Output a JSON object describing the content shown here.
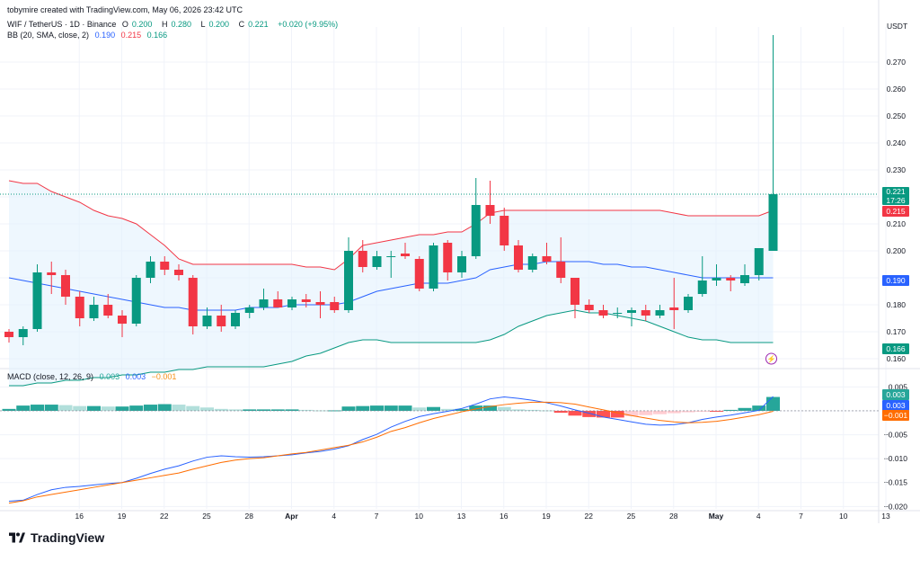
{
  "watermark_credit": "tobymire created with TradingView.com, May 06, 2026 23:42 UTC",
  "symbol_line": {
    "symbol": "WIF / TetherUS · 1D · Binance",
    "open_label": "O",
    "open": "0.200",
    "high_label": "H",
    "high": "0.280",
    "low_label": "L",
    "low": "0.200",
    "close_label": "C",
    "close": "0.221",
    "change": "+0.020 (+9.95%)"
  },
  "bb_line": {
    "label": "BB (20, SMA, close, 2)",
    "basis": "0.190",
    "upper": "0.215",
    "lower": "0.166"
  },
  "macd_line": {
    "label": "MACD (close, 12, 26, 9)",
    "hist": "0.003",
    "macd": "0.003",
    "signal": "−0.001"
  },
  "price_axis": {
    "currency": "USDT",
    "ticks": [
      "0.270",
      "0.260",
      "0.250",
      "0.240",
      "0.230",
      "0.220",
      "0.210",
      "0.200",
      "0.190",
      "0.180",
      "0.170",
      "0.160"
    ],
    "tags": {
      "last": "0.221",
      "countdown": "17:26",
      "upper": "0.215",
      "basis": "0.190",
      "lower": "0.166"
    }
  },
  "macd_axis": {
    "ticks": [
      "0.005",
      "0.000",
      "−0.005",
      "−0.010",
      "−0.015",
      "−0.020"
    ],
    "tags": {
      "hist": "0.003",
      "macd": "0.003",
      "signal": "−0.001"
    }
  },
  "time_axis": {
    "labels": [
      "16",
      "19",
      "22",
      "25",
      "28",
      "Apr",
      "4",
      "7",
      "10",
      "13",
      "16",
      "19",
      "22",
      "25",
      "28",
      "May",
      "4",
      "7",
      "10",
      "13"
    ],
    "bold": [
      "Apr",
      "May"
    ]
  },
  "colors": {
    "up": "#089981",
    "down": "#f23645",
    "bb_upper": "#f23645",
    "bb_basis": "#2962ff",
    "bb_lower": "#089981",
    "bb_fill": "#e3f2fd",
    "macd": "#2962ff",
    "signal": "#ff6d00",
    "hist_up_strong": "#26a69a",
    "hist_up_weak": "#b2dfdb",
    "hist_down_strong": "#ff5252",
    "hist_down_weak": "#ffcdd2",
    "grid": "#f0f3fa"
  },
  "brand": "TradingView",
  "chart_data": [
    {
      "type": "candlestick",
      "title": "WIF / TetherUS · 1D · Binance",
      "ylabel": "USDT",
      "ylim": [
        0.157,
        0.283
      ],
      "x": [
        "Mar 13",
        "Mar 14",
        "Mar 15",
        "Mar 16",
        "Mar 17",
        "Mar 18",
        "Mar 19",
        "Mar 20",
        "Mar 21",
        "Mar 22",
        "Mar 23",
        "Mar 24",
        "Mar 25",
        "Mar 26",
        "Mar 27",
        "Mar 28",
        "Mar 29",
        "Mar 30",
        "Mar 31",
        "Apr 1",
        "Apr 2",
        "Apr 3",
        "Apr 4",
        "Apr 5",
        "Apr 6",
        "Apr 7",
        "Apr 8",
        "Apr 9",
        "Apr 10",
        "Apr 11",
        "Apr 12",
        "Apr 13",
        "Apr 14",
        "Apr 15",
        "Apr 16",
        "Apr 17",
        "Apr 18",
        "Apr 19",
        "Apr 20",
        "Apr 21",
        "Apr 22",
        "Apr 23",
        "Apr 24",
        "Apr 25",
        "Apr 26",
        "Apr 27",
        "Apr 28",
        "Apr 29",
        "Apr 30",
        "May 1",
        "May 2",
        "May 3",
        "May 4",
        "May 5",
        "May 6"
      ],
      "ohlc": [
        [
          0.17,
          0.171,
          0.166,
          0.168
        ],
        [
          0.168,
          0.172,
          0.165,
          0.171
        ],
        [
          0.171,
          0.195,
          0.17,
          0.192
        ],
        [
          0.192,
          0.196,
          0.184,
          0.191
        ],
        [
          0.191,
          0.193,
          0.18,
          0.183
        ],
        [
          0.183,
          0.185,
          0.172,
          0.175
        ],
        [
          0.175,
          0.183,
          0.174,
          0.18
        ],
        [
          0.18,
          0.184,
          0.175,
          0.176
        ],
        [
          0.176,
          0.178,
          0.168,
          0.173
        ],
        [
          0.173,
          0.191,
          0.172,
          0.19
        ],
        [
          0.19,
          0.198,
          0.188,
          0.196
        ],
        [
          0.196,
          0.198,
          0.191,
          0.193
        ],
        [
          0.193,
          0.195,
          0.189,
          0.191
        ],
        [
          0.19,
          0.191,
          0.169,
          0.172
        ],
        [
          0.172,
          0.179,
          0.171,
          0.176
        ],
        [
          0.176,
          0.18,
          0.17,
          0.172
        ],
        [
          0.172,
          0.178,
          0.171,
          0.177
        ],
        [
          0.177,
          0.18,
          0.175,
          0.179
        ],
        [
          0.179,
          0.186,
          0.178,
          0.182
        ],
        [
          0.182,
          0.185,
          0.179,
          0.179
        ],
        [
          0.179,
          0.183,
          0.178,
          0.182
        ],
        [
          0.182,
          0.184,
          0.179,
          0.181
        ],
        [
          0.181,
          0.185,
          0.175,
          0.18
        ],
        [
          0.181,
          0.183,
          0.177,
          0.178
        ],
        [
          0.178,
          0.205,
          0.177,
          0.2
        ],
        [
          0.2,
          0.204,
          0.192,
          0.194
        ],
        [
          0.194,
          0.2,
          0.193,
          0.198
        ],
        [
          0.198,
          0.2,
          0.19,
          0.198
        ],
        [
          0.199,
          0.203,
          0.197,
          0.198
        ],
        [
          0.197,
          0.198,
          0.185,
          0.186
        ],
        [
          0.186,
          0.203,
          0.185,
          0.202
        ],
        [
          0.203,
          0.204,
          0.189,
          0.192
        ],
        [
          0.192,
          0.2,
          0.19,
          0.198
        ],
        [
          0.198,
          0.227,
          0.197,
          0.217
        ],
        [
          0.217,
          0.226,
          0.21,
          0.213
        ],
        [
          0.213,
          0.216,
          0.2,
          0.202
        ],
        [
          0.202,
          0.204,
          0.192,
          0.193
        ],
        [
          0.193,
          0.199,
          0.192,
          0.198
        ],
        [
          0.198,
          0.203,
          0.195,
          0.196
        ],
        [
          0.196,
          0.205,
          0.188,
          0.19
        ],
        [
          0.19,
          0.19,
          0.175,
          0.18
        ],
        [
          0.18,
          0.182,
          0.177,
          0.178
        ],
        [
          0.178,
          0.18,
          0.175,
          0.176
        ],
        [
          0.177,
          0.179,
          0.175,
          0.177
        ],
        [
          0.177,
          0.179,
          0.172,
          0.178
        ],
        [
          0.178,
          0.18,
          0.174,
          0.176
        ],
        [
          0.176,
          0.18,
          0.175,
          0.178
        ],
        [
          0.179,
          0.19,
          0.171,
          0.178
        ],
        [
          0.178,
          0.184,
          0.177,
          0.183
        ],
        [
          0.184,
          0.198,
          0.183,
          0.189
        ],
        [
          0.189,
          0.195,
          0.187,
          0.19
        ],
        [
          0.19,
          0.191,
          0.185,
          0.189
        ],
        [
          0.188,
          0.195,
          0.187,
          0.191
        ],
        [
          0.191,
          0.201,
          0.189,
          0.201
        ],
        [
          0.2,
          0.28,
          0.2,
          0.221
        ]
      ],
      "bb_upper": [
        0.226,
        0.225,
        0.225,
        0.222,
        0.22,
        0.218,
        0.215,
        0.213,
        0.212,
        0.21,
        0.206,
        0.202,
        0.197,
        0.195,
        0.195,
        0.195,
        0.195,
        0.195,
        0.195,
        0.195,
        0.195,
        0.194,
        0.194,
        0.193,
        0.197,
        0.202,
        0.203,
        0.204,
        0.205,
        0.206,
        0.206,
        0.207,
        0.207,
        0.21,
        0.214,
        0.215,
        0.215,
        0.215,
        0.215,
        0.215,
        0.215,
        0.215,
        0.215,
        0.215,
        0.215,
        0.215,
        0.215,
        0.214,
        0.213,
        0.213,
        0.213,
        0.213,
        0.213,
        0.213,
        0.215
      ],
      "bb_basis": [
        0.19,
        0.189,
        0.188,
        0.187,
        0.186,
        0.185,
        0.184,
        0.183,
        0.182,
        0.181,
        0.18,
        0.179,
        0.179,
        0.178,
        0.178,
        0.178,
        0.178,
        0.179,
        0.179,
        0.179,
        0.18,
        0.18,
        0.18,
        0.18,
        0.181,
        0.183,
        0.185,
        0.186,
        0.187,
        0.188,
        0.188,
        0.188,
        0.189,
        0.19,
        0.193,
        0.194,
        0.195,
        0.195,
        0.196,
        0.196,
        0.196,
        0.196,
        0.195,
        0.195,
        0.194,
        0.194,
        0.193,
        0.192,
        0.191,
        0.19,
        0.19,
        0.19,
        0.19,
        0.19,
        0.19
      ],
      "bb_lower": [
        0.15,
        0.15,
        0.151,
        0.151,
        0.152,
        0.152,
        0.153,
        0.153,
        0.154,
        0.154,
        0.155,
        0.155,
        0.156,
        0.156,
        0.157,
        0.157,
        0.157,
        0.157,
        0.157,
        0.158,
        0.159,
        0.161,
        0.162,
        0.164,
        0.166,
        0.167,
        0.167,
        0.166,
        0.166,
        0.166,
        0.166,
        0.166,
        0.166,
        0.166,
        0.167,
        0.169,
        0.172,
        0.174,
        0.176,
        0.177,
        0.178,
        0.177,
        0.177,
        0.176,
        0.175,
        0.174,
        0.172,
        0.17,
        0.168,
        0.167,
        0.167,
        0.166,
        0.166,
        0.166,
        0.166
      ]
    },
    {
      "type": "bar",
      "title": "MACD (close, 12, 26, 9)",
      "ylim": [
        -0.0205,
        0.0062
      ],
      "histogram": [
        0.0004,
        0.0011,
        0.0013,
        0.0013,
        0.0012,
        0.001,
        0.001,
        0.0009,
        0.0009,
        0.0011,
        0.0013,
        0.0014,
        0.0013,
        0.001,
        0.0007,
        0.0004,
        0.0003,
        0.0003,
        0.0003,
        0.0003,
        0.0003,
        0.0002,
        0.0001,
        0.0001,
        0.0009,
        0.001,
        0.0011,
        0.0011,
        0.0011,
        0.0007,
        0.0008,
        0.0004,
        0.0004,
        0.0011,
        0.0011,
        0.0008,
        0.0003,
        0.0002,
        0.0001,
        -0.0004,
        -0.001,
        -0.0013,
        -0.0014,
        -0.0014,
        -0.0011,
        -0.0009,
        -0.0007,
        -0.0005,
        -0.0003,
        -0.0001,
        -0.0001,
        0.0002,
        0.0006,
        0.0011,
        0.0029
      ],
      "macd": [
        -0.0189,
        -0.0187,
        -0.0175,
        -0.0165,
        -0.016,
        -0.0158,
        -0.0155,
        -0.0152,
        -0.015,
        -0.0141,
        -0.0131,
        -0.0122,
        -0.0115,
        -0.0105,
        -0.0097,
        -0.0094,
        -0.0096,
        -0.0097,
        -0.0096,
        -0.0094,
        -0.0092,
        -0.0088,
        -0.0085,
        -0.008,
        -0.0073,
        -0.006,
        -0.0049,
        -0.0034,
        -0.0022,
        -0.0012,
        -0.0006,
        -0.0001,
        0.0005,
        0.0014,
        0.0025,
        0.0029,
        0.0026,
        0.0022,
        0.0017,
        0.001,
        0.0002,
        -0.0005,
        -0.0013,
        -0.0018,
        -0.0023,
        -0.0028,
        -0.003,
        -0.0029,
        -0.0025,
        -0.0018,
        -0.0013,
        -0.0009,
        -0.0004,
        0.0001,
        0.003
      ],
      "signal": [
        -0.0193,
        -0.0188,
        -0.018,
        -0.0175,
        -0.017,
        -0.0165,
        -0.016,
        -0.0155,
        -0.015,
        -0.0145,
        -0.014,
        -0.0135,
        -0.013,
        -0.0122,
        -0.0115,
        -0.0108,
        -0.0103,
        -0.01,
        -0.0098,
        -0.0094,
        -0.009,
        -0.0087,
        -0.0082,
        -0.0077,
        -0.0072,
        -0.0065,
        -0.0055,
        -0.0043,
        -0.0035,
        -0.0025,
        -0.0016,
        -0.0009,
        -0.0002,
        0.0004,
        0.0009,
        0.0013,
        0.0016,
        0.0018,
        0.0018,
        0.0017,
        0.0014,
        0.0008,
        0.0002,
        -0.0004,
        -0.001,
        -0.0015,
        -0.002,
        -0.0023,
        -0.0025,
        -0.0024,
        -0.0022,
        -0.0018,
        -0.0013,
        -0.0008,
        -0.0001
      ]
    }
  ]
}
